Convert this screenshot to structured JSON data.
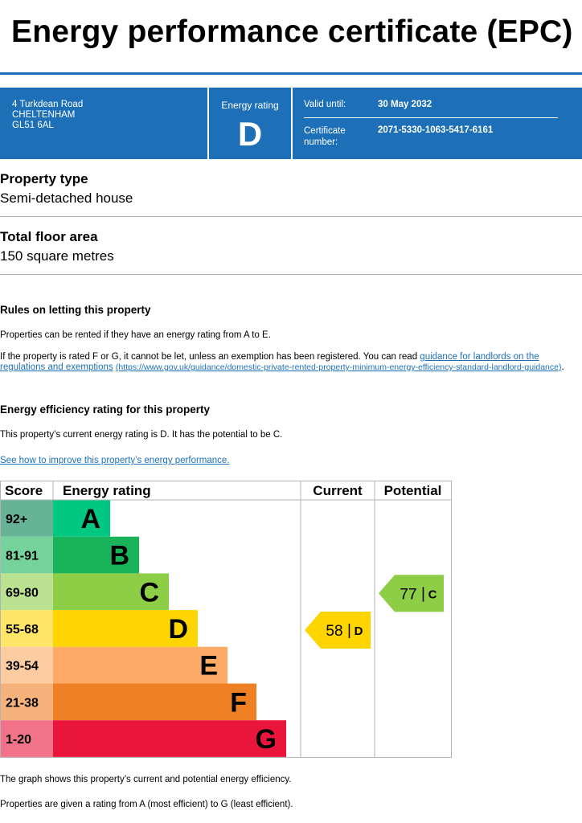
{
  "page": {
    "title": "Energy performance certificate (EPC)"
  },
  "banner": {
    "address_line1": "4 Turkdean Road",
    "address_line2": "CHELTENHAM",
    "address_line3": "GL51 6AL",
    "rating_label": "Energy rating",
    "rating_value": "D",
    "valid_until_label": "Valid until:",
    "valid_until_value": "30 May 2032",
    "certificate_label_1": "Certificate",
    "certificate_label_2": "number:",
    "certificate_number": "2071-5330-1063-5417-6161"
  },
  "property": {
    "type_heading": "Property type",
    "type_value": "Semi-detached house",
    "area_heading": "Total floor area",
    "area_value": "150 square metres"
  },
  "letting": {
    "heading": "Rules on letting this property",
    "para1": "Properties can be rented if they have an energy rating from A to E.",
    "para2_prefix": "If the property is rated F or G, it cannot be let, unless an exemption has been registered. You can read ",
    "para2_link": "guidance for landlords on the regulations and exemptions",
    "para2_url": "(https://www.gov.uk/guidance/domestic-private-rented-property-minimum-energy-efficiency-standard-landlord-guidance)",
    "para2_suffix": "."
  },
  "efficiency": {
    "heading": "Energy efficiency rating for this property",
    "para": "This property’s current energy rating is D. It has the potential to be C.",
    "link": "See how to improve this property’s energy performance."
  },
  "chart_data": {
    "type": "table",
    "headers": {
      "score": "Score",
      "rating": "Energy rating",
      "current": "Current",
      "potential": "Potential"
    },
    "bands": [
      {
        "score": "92+",
        "letter": "A",
        "color": "#008054",
        "score_bg": "#66b398",
        "bar_color": "#00c781"
      },
      {
        "score": "81-91",
        "letter": "B",
        "color": "#19b459",
        "score_bg": "#75d29b",
        "bar_color": "#19b459"
      },
      {
        "score": "69-80",
        "letter": "C",
        "color": "#8dce46",
        "score_bg": "#bbe290",
        "bar_color": "#8dce46"
      },
      {
        "score": "55-68",
        "letter": "D",
        "color": "#ffd500",
        "score_bg": "#ffe666",
        "bar_color": "#ffd500"
      },
      {
        "score": "39-54",
        "letter": "E",
        "color": "#fcaa65",
        "score_bg": "#fdcca3",
        "bar_color": "#fcaa65"
      },
      {
        "score": "21-38",
        "letter": "F",
        "color": "#ef8023",
        "score_bg": "#f5b37b",
        "bar_color": "#ef8023"
      },
      {
        "score": "1-20",
        "letter": "G",
        "color": "#e9153b",
        "score_bg": "#f27389",
        "bar_color": "#e9153b"
      }
    ],
    "current": {
      "score": 58,
      "letter": "D",
      "separator": "|",
      "color": "#ffd500"
    },
    "potential": {
      "score": 77,
      "letter": "C",
      "separator": "|",
      "color": "#8dce46"
    }
  },
  "footer": {
    "para1": "The graph shows this property’s current and potential energy efficiency.",
    "para2": "Properties are given a rating from A (most efficient) to G (least efficient)."
  }
}
